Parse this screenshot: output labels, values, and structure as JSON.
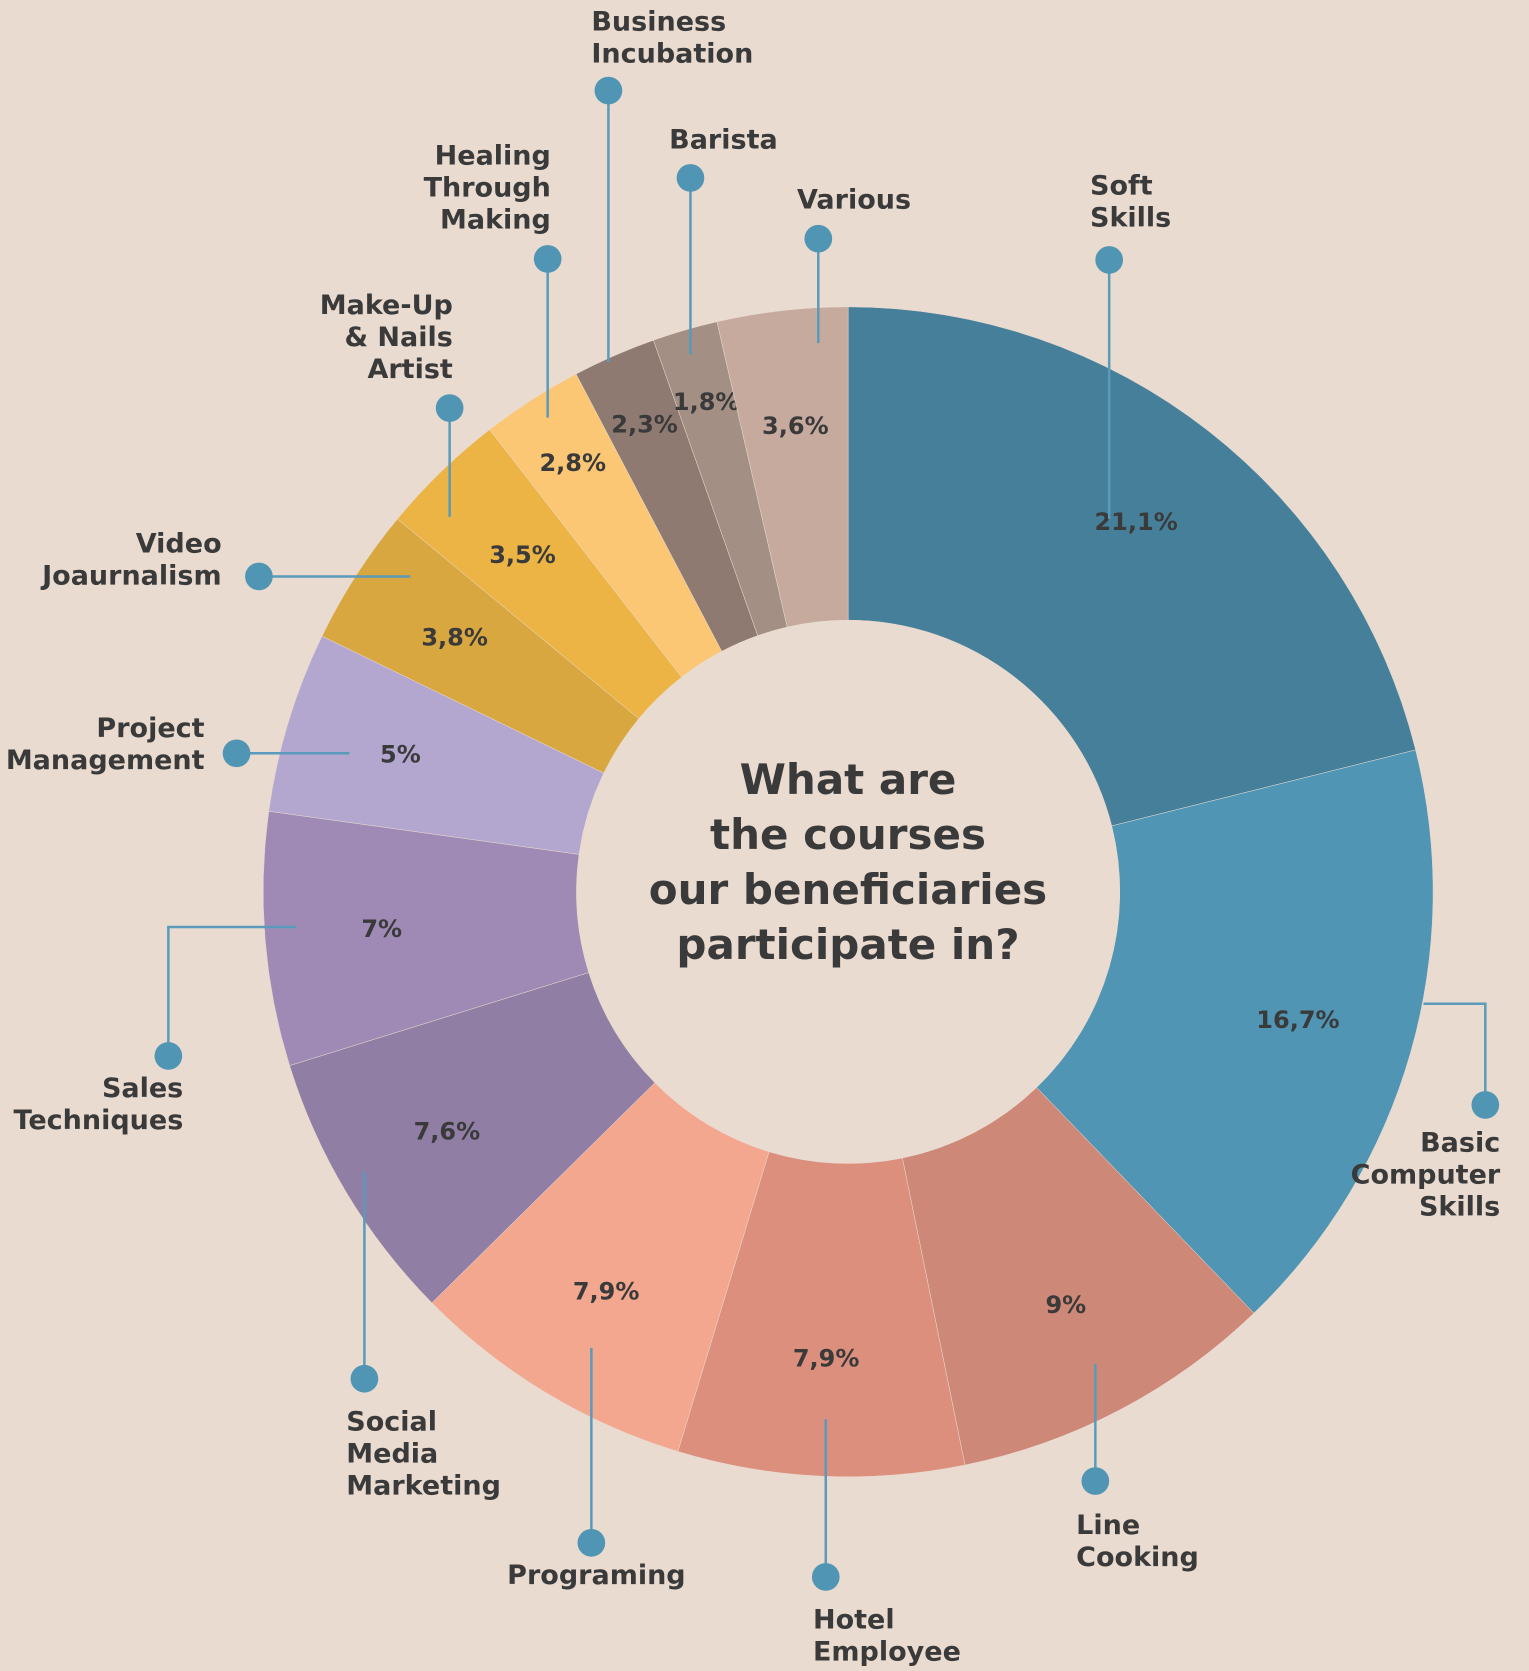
{
  "chart_data": {
    "type": "donut",
    "title": "What are\nthe courses\nour beneficiaries\nparticipate in?",
    "categories": [
      "Soft\nSkills",
      "Basic\nComputer\nSkills",
      "Line\nCooking",
      "Hotel\nEmployee",
      "Programing",
      "Social\nMedia\nMarketing",
      "Sales\nTechniques",
      "Project\nManagement",
      "Video\nJoaurnalism",
      "Make-Up\n& Nails\nArtist",
      "Healing\nThrough\nMaking",
      "Business\nIncubation",
      "Barista",
      "Various"
    ],
    "values": [
      21.1,
      16.7,
      9,
      7.9,
      7.9,
      7.6,
      7,
      5,
      3.8,
      3.5,
      2.8,
      2.3,
      1.8,
      3.6
    ],
    "value_labels": [
      "21,1%",
      "16,7%",
      "9%",
      "7,9%",
      "7,9%",
      "7,6%",
      "7%",
      "5%",
      "3,8%",
      "3,5%",
      "2,8%",
      "2,3%",
      "1,8%",
      "3,6%"
    ],
    "colors": [
      "#457f99",
      "#5195b4",
      "#ce8877",
      "#dc8f7d",
      "#f4a78f",
      "#917ea4",
      "#9f8ab5",
      "#b3a7cf",
      "#d9a73f",
      "#ecb445",
      "#fbc774",
      "#8e7a70",
      "#a38f84",
      "#c6aa9e"
    ]
  }
}
